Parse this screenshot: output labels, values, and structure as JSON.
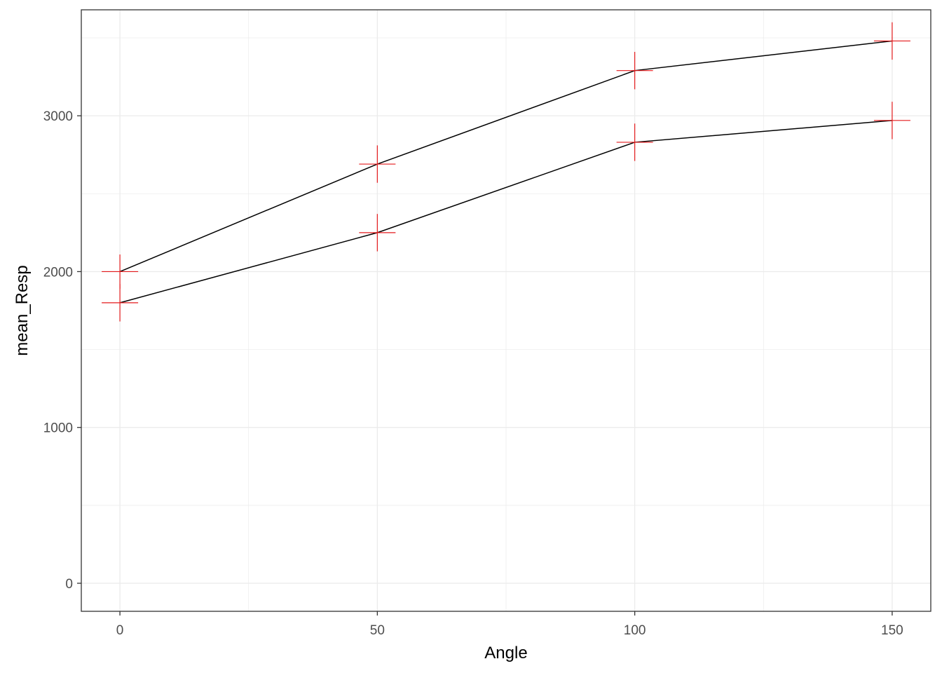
{
  "chart_data": {
    "type": "line",
    "title": "",
    "xlabel": "Angle",
    "ylabel": "mean_Resp",
    "x": [
      0,
      50,
      100,
      150
    ],
    "xlim": [
      -7.5,
      157.5
    ],
    "ylim": [
      -180,
      3680
    ],
    "x_ticks": [
      0,
      50,
      100,
      150
    ],
    "y_ticks": [
      0,
      1000,
      2000,
      3000
    ],
    "x_tick_labels": [
      "0",
      "50",
      "100",
      "150"
    ],
    "y_tick_labels": [
      "0",
      "1000",
      "2000",
      "3000"
    ],
    "grid": true,
    "theme": "bw",
    "line_color": "#000000",
    "errorbar_color": "#e41a1c",
    "series": [
      {
        "values": [
          2000,
          2690,
          3290,
          3480
        ],
        "errors": [
          110,
          120,
          120,
          120
        ]
      },
      {
        "values": [
          1800,
          2250,
          2830,
          2970
        ],
        "errors": [
          120,
          120,
          120,
          120
        ]
      }
    ]
  }
}
